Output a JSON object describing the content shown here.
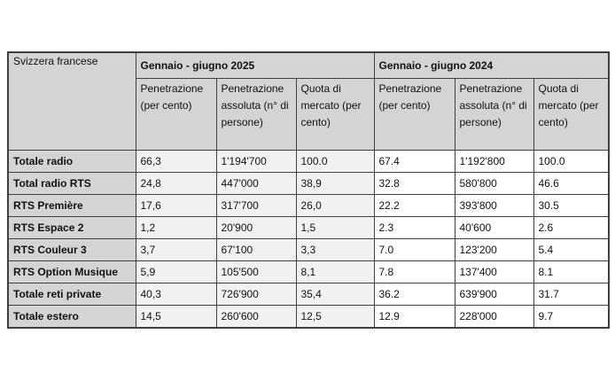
{
  "table": {
    "corner_label": "Svizzera francese",
    "groups": [
      {
        "label": "Gennaio - giugno 2025"
      },
      {
        "label": "Gennaio - giugno 2024"
      }
    ],
    "sub_columns": [
      "Penetrazione (per cento)",
      "Penetrazione assoluta (n° di persone)",
      "Quota di mercato (per cento)",
      "Penetrazione (per cento)",
      "Penetrazione assoluta (n° di persone)",
      "Quota di mercato (per cento)"
    ],
    "rows": [
      {
        "label": "Totale radio",
        "values": [
          "66,3",
          "1'194'700",
          "100.0",
          "67.4",
          "1'192'800",
          "100.0"
        ]
      },
      {
        "label": "Total radio RTS",
        "values": [
          "24,8",
          "447'000",
          "38,9",
          "32.8",
          "580'800",
          "46.6"
        ]
      },
      {
        "label": "RTS Première",
        "values": [
          "17,6",
          "317'700",
          "26,0",
          "22.2",
          "393'800",
          "30.5"
        ]
      },
      {
        "label": "RTS Espace 2",
        "values": [
          "1,2",
          "20'900",
          "1,5",
          "2.3",
          "40'600",
          "2.6"
        ]
      },
      {
        "label": "RTS Couleur 3",
        "values": [
          "3,7",
          "67'100",
          "3,3",
          "7.0",
          "123'200",
          "5.4"
        ]
      },
      {
        "label": "RTS Option Musique",
        "values": [
          "5,9",
          "105'500",
          "8,1",
          "7.8",
          "137'400",
          "8.1"
        ]
      },
      {
        "label": "Totale reti private",
        "values": [
          "40,3",
          "726'900",
          "35,4",
          "36.2",
          "639'900",
          "31.7"
        ]
      },
      {
        "label": "Totale estero",
        "values": [
          "14,5",
          "260'600",
          "12,5",
          "12.9",
          "228'000",
          "9.7"
        ]
      }
    ],
    "colors": {
      "header_bg": "#d4d4d4",
      "period_2025_bg": "#f1f1f1",
      "period_2024_bg": "#ffffff",
      "grid_border": "#3f3f3f"
    }
  }
}
